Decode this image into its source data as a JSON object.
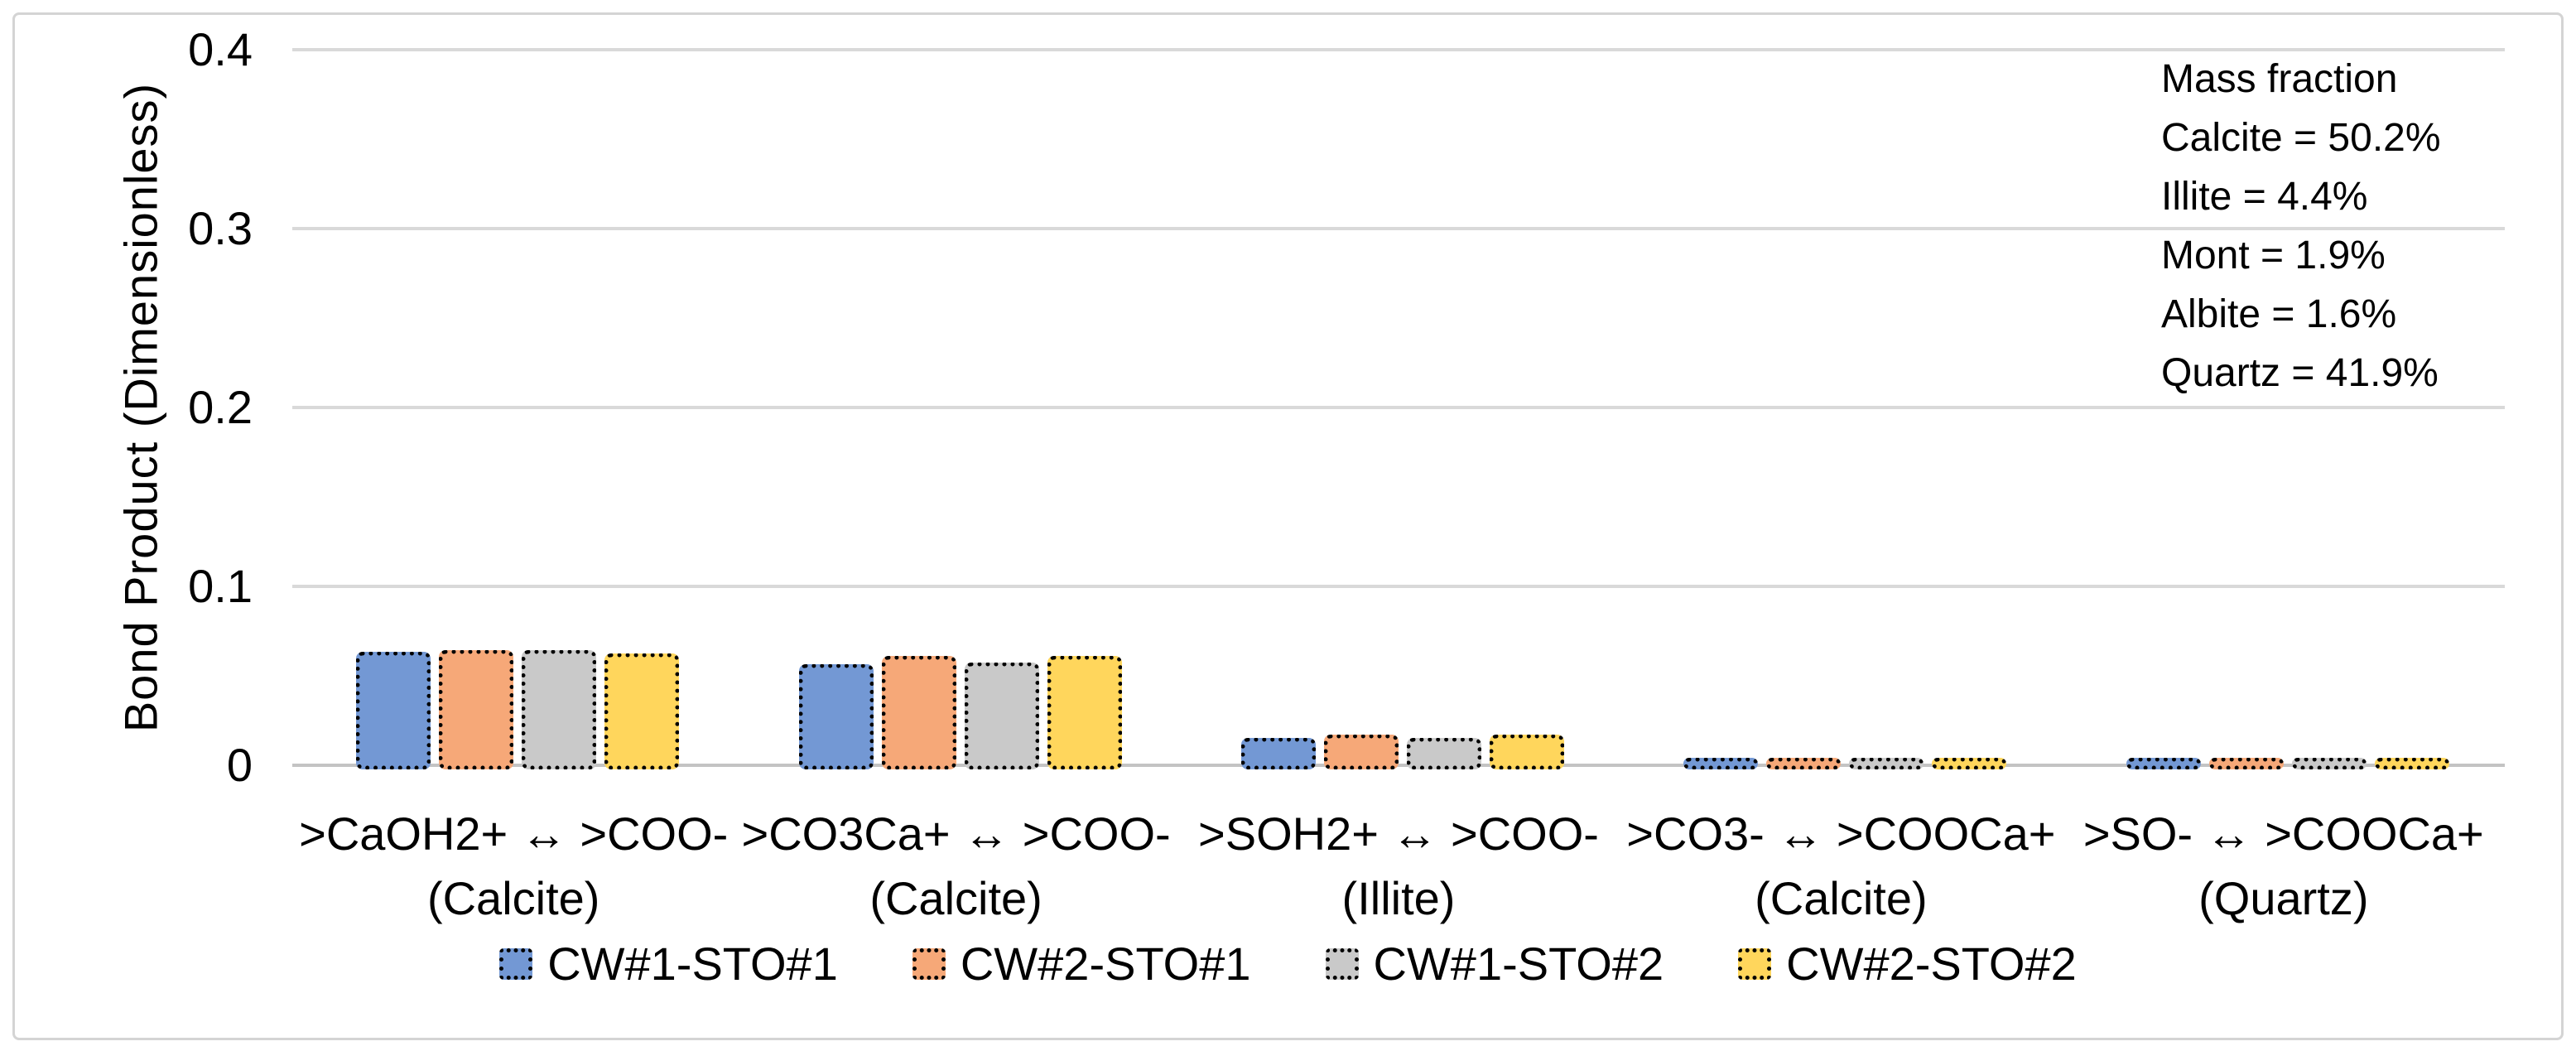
{
  "figure": {
    "background": "#FFFFFF",
    "frame_border_color": "#D4D4D4",
    "text_color": "#000000"
  },
  "chart_data": {
    "type": "bar",
    "title": "",
    "xlabel": "",
    "ylabel": "Bond Product (Dimensionless)",
    "ylim": [
      0,
      0.4
    ],
    "grid": true,
    "gridline_color": "#D9D9D9",
    "baseline_color": "#C4C4C4",
    "bar_border_style": "dotted",
    "bar_border_color": "#000000",
    "legend_position": "bottom",
    "yticks": [
      {
        "value": 0,
        "label": "0"
      },
      {
        "value": 0.1,
        "label": "0.1"
      },
      {
        "value": 0.2,
        "label": "0.2"
      },
      {
        "value": 0.3,
        "label": "0.3"
      },
      {
        "value": 0.4,
        "label": "0.4"
      }
    ],
    "categories": [
      {
        "reaction": ">CaOH2+ ↔ >COO-",
        "mineral": "(Calcite)"
      },
      {
        "reaction": ">CO3Ca+ ↔ >COO-",
        "mineral": "(Calcite)"
      },
      {
        "reaction": ">SOH2+ ↔ >COO-",
        "mineral": "(Illite)"
      },
      {
        "reaction": ">CO3- ↔ >COOCa+",
        "mineral": "(Calcite)"
      },
      {
        "reaction": ">SO- ↔ >COOCa+",
        "mineral": "(Quartz)"
      }
    ],
    "series": [
      {
        "name": "CW#1-STO#1",
        "color": "#7398D4",
        "values": [
          0.061,
          0.054,
          0.013,
          0.002,
          0.002
        ]
      },
      {
        "name": "CW#2-STO#1",
        "color": "#F6A878",
        "values": [
          0.062,
          0.059,
          0.015,
          0.002,
          0.002
        ]
      },
      {
        "name": "CW#1-STO#2",
        "color": "#C9C9C9",
        "values": [
          0.062,
          0.055,
          0.013,
          0.002,
          0.002
        ]
      },
      {
        "name": "CW#2-STO#2",
        "color": "#FFD65C",
        "values": [
          0.06,
          0.059,
          0.015,
          0.002,
          0.002
        ]
      }
    ],
    "annotation": {
      "lines": [
        "Mass fraction",
        "Calcite = 50.2%",
        "Illite = 4.4%",
        "Mont = 1.9%",
        "Albite = 1.6%",
        "Quartz = 41.9%"
      ]
    }
  }
}
